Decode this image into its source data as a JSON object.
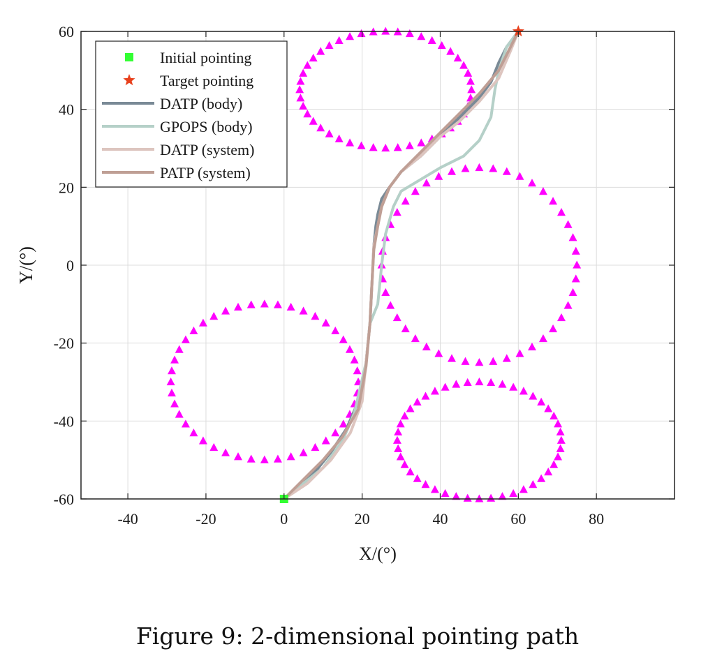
{
  "caption": "Figure 9: 2-dimensional pointing path",
  "chart_data": {
    "type": "line",
    "xlabel": "X/(°)",
    "ylabel": "Y/(°)",
    "xlim": [
      -52,
      100
    ],
    "ylim": [
      -60,
      60
    ],
    "xticks": [
      -40,
      -20,
      0,
      20,
      40,
      60,
      80
    ],
    "yticks": [
      -60,
      -40,
      -20,
      0,
      20,
      40,
      60
    ],
    "grid": true,
    "legend_position": "top-left",
    "initial": {
      "name": "Initial pointing",
      "x": 0,
      "y": -60,
      "color": "#33ff33",
      "marker": "square"
    },
    "target": {
      "name": "Target pointing",
      "x": 60,
      "y": 60,
      "color": "#e8401c",
      "marker": "star"
    },
    "obstacles": {
      "marker": "triangle",
      "color": "#ff00ff",
      "points_per_ellipse": 44,
      "ellipses": [
        {
          "cx": 26,
          "cy": 45,
          "rx": 22,
          "ry": 15
        },
        {
          "cx": 50,
          "cy": 0,
          "rx": 25,
          "ry": 25
        },
        {
          "cx": -5,
          "cy": -30,
          "rx": 24,
          "ry": 20
        },
        {
          "cx": 50,
          "cy": -45,
          "rx": 21,
          "ry": 15
        }
      ]
    },
    "series": [
      {
        "name": "DATP (body)",
        "color": "#7a8a96",
        "x": [
          0,
          4,
          8,
          12,
          16,
          19,
          21,
          22,
          22.5,
          23,
          23.5,
          24,
          25,
          27,
          30,
          35,
          40,
          45,
          50,
          53,
          55,
          57,
          60
        ],
        "y": [
          -60,
          -57,
          -53,
          -48,
          -42,
          -35,
          -25,
          -15,
          -5,
          5,
          10,
          13,
          17,
          20,
          24,
          28,
          33,
          38,
          43,
          47,
          52,
          56,
          60
        ]
      },
      {
        "name": "GPOPS (body)",
        "color": "#b5d0c8",
        "x": [
          0,
          5,
          10,
          15,
          18,
          21,
          22,
          24,
          24.5,
          25,
          26,
          28,
          30,
          35,
          40,
          46,
          50,
          53,
          54,
          55,
          57,
          60
        ],
        "y": [
          -60,
          -56,
          -52,
          -45,
          -38,
          -25,
          -15,
          -10,
          -5,
          0,
          8,
          15,
          19,
          22,
          25,
          28,
          32,
          38,
          45,
          50,
          56,
          60
        ]
      },
      {
        "name": "DATP (system)",
        "color": "#ddc5bf",
        "x": [
          0,
          6,
          12,
          17,
          20,
          21,
          22,
          22.5,
          23,
          24,
          25,
          27,
          30,
          35,
          40,
          45,
          50,
          55,
          58,
          60
        ],
        "y": [
          -60,
          -56,
          -50,
          -43,
          -35,
          -25,
          -15,
          -5,
          5,
          10,
          15,
          20,
          24,
          28,
          33,
          37,
          42,
          48,
          55,
          60
        ]
      },
      {
        "name": "PATP (system)",
        "color": "#bf9f95",
        "x": [
          0,
          5,
          10,
          15,
          19,
          21,
          22,
          22.5,
          23,
          24,
          25,
          27,
          30,
          35,
          40,
          45,
          50,
          55,
          58,
          60
        ],
        "y": [
          -60,
          -55,
          -50,
          -44,
          -37,
          -26,
          -15,
          -5,
          4,
          10,
          15,
          20,
          24,
          29,
          34,
          39,
          44,
          50,
          56,
          60
        ]
      }
    ]
  }
}
